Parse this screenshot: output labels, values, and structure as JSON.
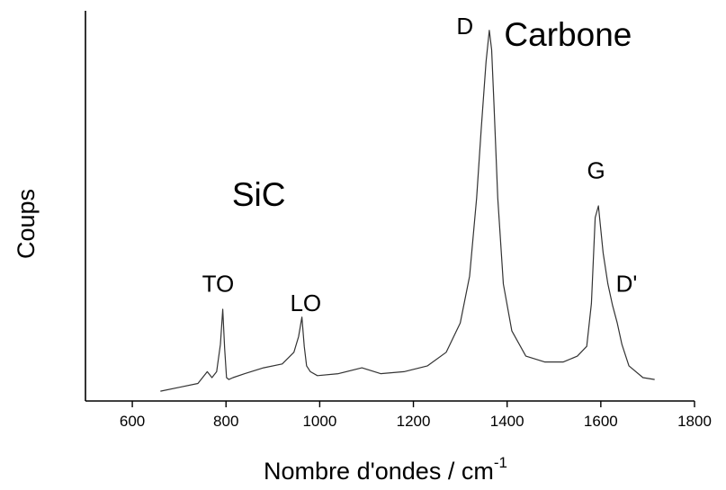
{
  "chart_data": {
    "type": "line",
    "title": "",
    "xlabel": "Nombre d'ondes / cm",
    "xlabel_superscript": "-1",
    "ylabel": "Coups",
    "xlim": [
      500,
      1800
    ],
    "ylim": [
      0,
      100
    ],
    "y_tick_labels": false,
    "grid": false,
    "legend": "none",
    "x_ticks": [
      600,
      800,
      1000,
      1200,
      1400,
      1600,
      1800
    ],
    "x_tick_labels": [
      "600",
      "800",
      "1000",
      "1200",
      "1400",
      "1600",
      "1800"
    ],
    "series": [
      {
        "color": "#333333",
        "x": [
          660,
          700,
          740,
          760,
          770,
          780,
          788,
          793,
          797,
          801,
          806,
          815,
          840,
          880,
          920,
          945,
          955,
          962,
          967,
          972,
          980,
          995,
          1040,
          1090,
          1130,
          1180,
          1230,
          1270,
          1300,
          1320,
          1335,
          1345,
          1355,
          1362,
          1367,
          1372,
          1380,
          1392,
          1410,
          1440,
          1480,
          1520,
          1550,
          1570,
          1580,
          1588,
          1595,
          1605,
          1615,
          1625,
          1635,
          1645,
          1660,
          1690,
          1715
        ],
        "y": [
          2.5,
          3.5,
          4.5,
          7.5,
          6.0,
          7.5,
          14.5,
          23.5,
          13.5,
          6.0,
          5.5,
          6.0,
          7.0,
          8.5,
          9.5,
          12.5,
          16.5,
          21.5,
          14.0,
          9.0,
          7.5,
          6.5,
          7.0,
          8.5,
          7.0,
          7.5,
          9.0,
          12.5,
          20.0,
          32.0,
          52.0,
          70.0,
          87.0,
          95.0,
          90.0,
          76.0,
          52.0,
          30.0,
          18.0,
          11.5,
          10.0,
          10.0,
          11.5,
          14.0,
          25.0,
          47.0,
          50.0,
          38.0,
          30.0,
          24.5,
          20.0,
          14.5,
          9.0,
          6.0,
          5.5
        ]
      }
    ],
    "annotations": [
      {
        "text": "SiC",
        "x": 870,
        "y": 50,
        "style": "big"
      },
      {
        "text": "Carbone",
        "x": 1530,
        "y": 91,
        "style": "big"
      },
      {
        "text": "TO",
        "x": 783,
        "y": 28,
        "style": "peak"
      },
      {
        "text": "LO",
        "x": 970,
        "y": 23,
        "style": "peak"
      },
      {
        "text": "D",
        "x": 1310,
        "y": 94,
        "style": "peak"
      },
      {
        "text": "G",
        "x": 1590,
        "y": 57,
        "style": "peak"
      },
      {
        "text": "D'",
        "x": 1655,
        "y": 28,
        "style": "peak"
      }
    ]
  }
}
